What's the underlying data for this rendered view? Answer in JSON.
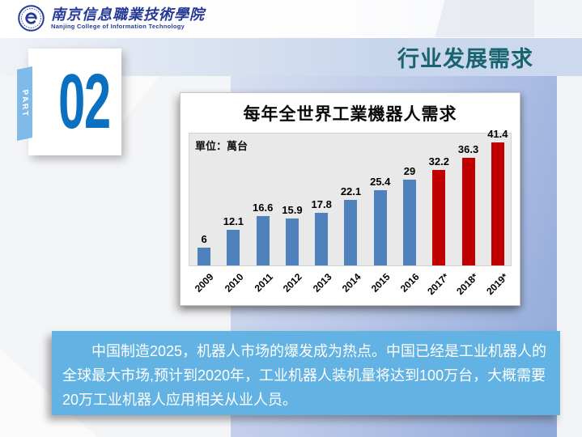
{
  "header": {
    "logo": {
      "cn": "南京信息職業技術學院",
      "en": "Nanjing College of Information Technology"
    }
  },
  "title_bar": {
    "title": "行业发展需求"
  },
  "part_badge": {
    "label": "PART",
    "number": "02"
  },
  "chart_data": {
    "type": "bar",
    "title": "每年全世界工業機器人需求",
    "unit_label": "單位：萬台",
    "categories": [
      "2009",
      "2010",
      "2011",
      "2012",
      "2013",
      "2014",
      "2015",
      "2016",
      "2017*",
      "2018*",
      "2019*"
    ],
    "values": [
      6,
      12.1,
      16.6,
      15.9,
      17.8,
      22.1,
      25.4,
      29,
      32.2,
      36.3,
      41.4
    ],
    "series_note": "2017*-2019* are forecast values shown in red",
    "forecast_from_index": 8,
    "bar_colors": {
      "actual": "#4f81bd",
      "forecast": "#c00000"
    },
    "ylim": [
      0,
      45
    ],
    "grid": false,
    "legend": false,
    "xlabel": "",
    "ylabel": ""
  },
  "body_text": {
    "paragraph": "中国制造2025，机器人市场的爆发成为热点。中国已经是工业机器人的全球最大市场,预计到2020年，工业机器人装机量将达到100万台，大概需要20万工业机器人应用相关从业人员。"
  },
  "colors": {
    "slide_title": "#18646f",
    "part_number_blue": "#0c70c0",
    "ribbon_blue": "#7fbae9",
    "textbox_blue": "#62b2e3",
    "band_gradient_start": "#d7dff1",
    "band_gradient_end": "#8ea7d8",
    "plot_background": "#e9e9e9",
    "logo_navy": "#253a96"
  }
}
